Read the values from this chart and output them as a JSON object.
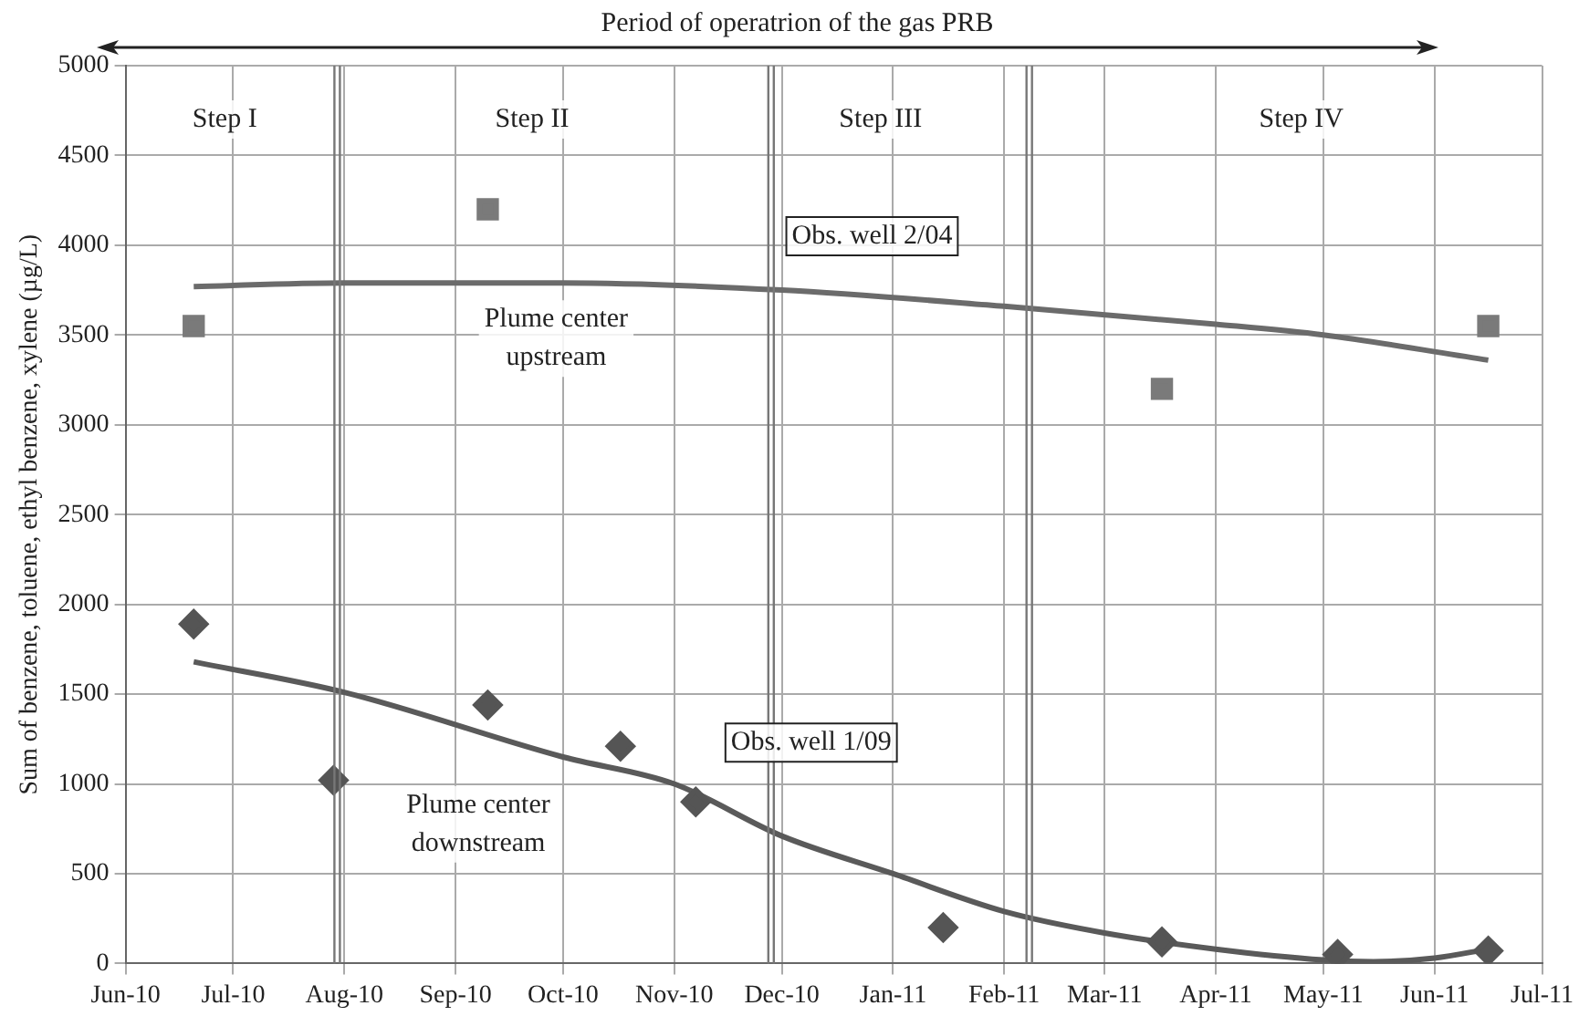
{
  "chart_data": {
    "type": "scatter",
    "title": "Period of operatrion of the gas PRB",
    "ylabel": "Sum of benzene, toluene, ethyl benzene, xylene (µg/L)",
    "xlim": [
      "2010-06-01",
      "2011-07-01"
    ],
    "xticks": [
      {
        "value": "2010-06-01",
        "label": "Jun-10"
      },
      {
        "value": "2010-07-01",
        "label": "Jul-10"
      },
      {
        "value": "2010-08-01",
        "label": "Aug-10"
      },
      {
        "value": "2010-09-01",
        "label": "Sep-10"
      },
      {
        "value": "2010-10-01",
        "label": "Oct-10"
      },
      {
        "value": "2010-11-01",
        "label": "Nov-10"
      },
      {
        "value": "2010-12-01",
        "label": "Dec-10"
      },
      {
        "value": "2011-01-01",
        "label": "Jan-11"
      },
      {
        "value": "2011-02-01",
        "label": "Feb-11"
      },
      {
        "value": "2011-03-01",
        "label": "Mar-11"
      },
      {
        "value": "2011-04-01",
        "label": "Apr-11"
      },
      {
        "value": "2011-05-01",
        "label": "May-11"
      },
      {
        "value": "2011-06-01",
        "label": "Jun-11"
      },
      {
        "value": "2011-07-01",
        "label": "Jul-11"
      }
    ],
    "ylim": [
      0,
      5000
    ],
    "yticks": [
      0,
      500,
      1000,
      1500,
      2000,
      2500,
      3000,
      3500,
      4000,
      4500,
      5000
    ],
    "grid": true,
    "legend": false,
    "series": [
      {
        "marker": "square",
        "color": "#7a7a7a",
        "x": [
          "2010-06-20",
          "2010-09-10",
          "2011-03-17",
          "2011-06-16"
        ],
        "values": [
          3550,
          4200,
          3200,
          3550
        ]
      },
      {
        "marker": "diamond",
        "color": "#555555",
        "x": [
          "2010-06-20",
          "2010-07-29",
          "2010-09-10",
          "2010-10-17",
          "2010-11-07",
          "2011-01-15",
          "2011-03-17",
          "2011-05-05",
          "2011-06-16"
        ],
        "values": [
          1890,
          1020,
          1440,
          1210,
          900,
          200,
          120,
          50,
          70
        ]
      },
      {
        "type": "line",
        "marker": "none",
        "color": "#6b6b6b",
        "x": [
          "2010-06-20",
          "2010-08-01",
          "2010-10-01",
          "2010-12-01",
          "2011-02-01",
          "2011-04-01",
          "2011-05-01",
          "2011-06-16"
        ],
        "values": [
          3770,
          3790,
          3790,
          3750,
          3660,
          3560,
          3500,
          3360
        ]
      },
      {
        "type": "line",
        "marker": "none",
        "color": "#5a5a5a",
        "x": [
          "2010-06-20",
          "2010-08-01",
          "2010-10-01",
          "2010-11-01",
          "2010-12-01",
          "2011-01-01",
          "2011-02-01",
          "2011-03-01",
          "2011-04-01",
          "2011-05-01",
          "2011-05-15",
          "2011-06-01",
          "2011-06-16"
        ],
        "values": [
          1680,
          1510,
          1150,
          1000,
          710,
          500,
          290,
          170,
          80,
          20,
          10,
          30,
          80
        ]
      }
    ],
    "ref_lines": [
      {
        "axis": "x",
        "value": "2010-07-30"
      },
      {
        "axis": "x",
        "value": "2010-11-28"
      },
      {
        "axis": "x",
        "value": "2011-02-08"
      }
    ],
    "annotations": [
      "Step I",
      "Step II",
      "Step III",
      "Step IV",
      "Obs. well 2/04",
      "Plume center upstream",
      "Obs. well 1/09",
      "Plume center downstream"
    ]
  }
}
